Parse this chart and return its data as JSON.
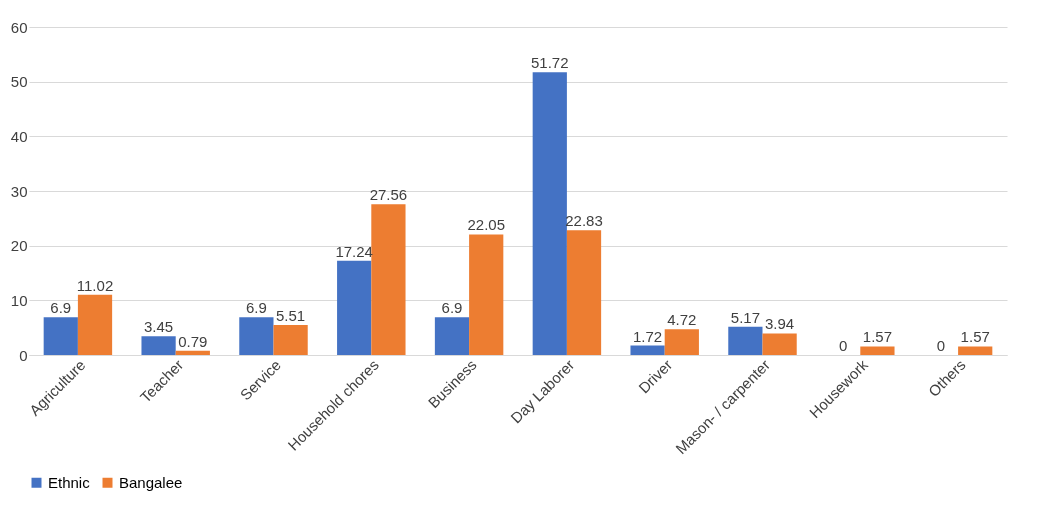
{
  "chart_data": {
    "type": "bar",
    "categories": [
      "Agriculture",
      "Teacher",
      "Service",
      "Household chores",
      "Business",
      "Day Laborer",
      "Driver",
      "Mason- / carpenter",
      "Housework",
      "Others"
    ],
    "series": [
      {
        "name": "Ethnic",
        "color": "#4472c4",
        "values": [
          6.9,
          3.45,
          6.9,
          17.24,
          6.9,
          51.72,
          1.72,
          5.17,
          0,
          0
        ]
      },
      {
        "name": "Bangalee",
        "color": "#ed7d31",
        "values": [
          11.02,
          0.79,
          5.51,
          27.56,
          22.05,
          22.83,
          4.72,
          3.94,
          1.57,
          1.57
        ]
      }
    ],
    "ylim": [
      0,
      60
    ],
    "yticks": [
      0,
      10,
      20,
      30,
      40,
      50,
      60
    ],
    "grid": "y",
    "legend": "bottom",
    "data_labels": true
  }
}
